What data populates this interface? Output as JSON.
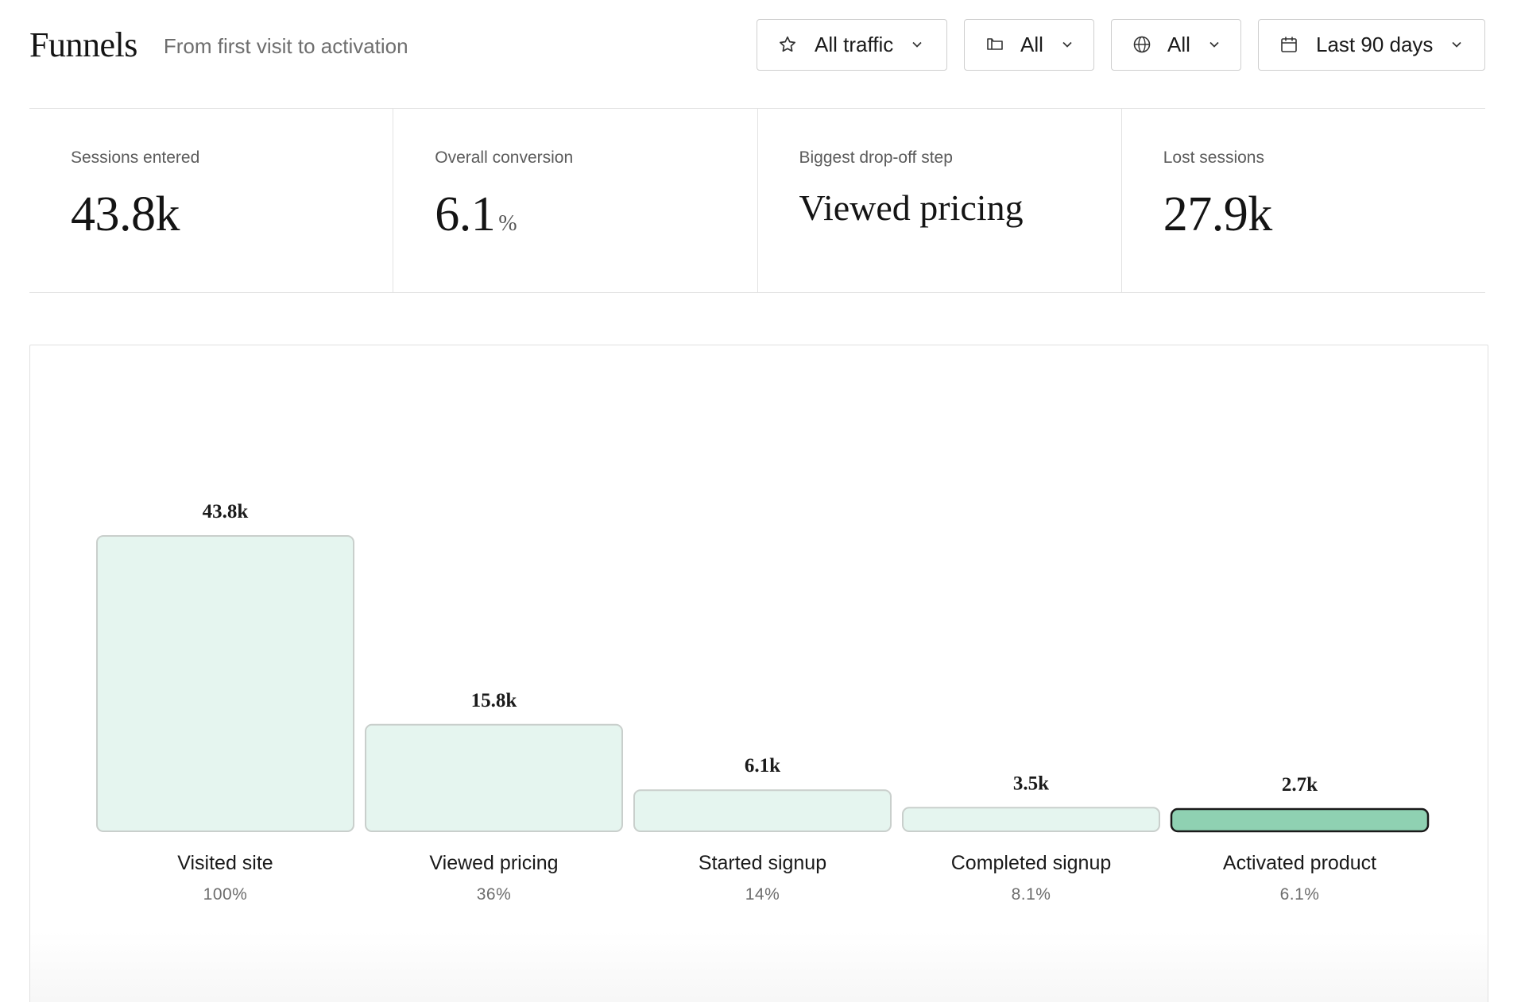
{
  "header": {
    "title": "Funnels",
    "subtitle": "From first visit to activation"
  },
  "filters": {
    "traffic": {
      "label": "All traffic",
      "icon": "star-icon"
    },
    "folder": {
      "label": "All",
      "icon": "folder-icon"
    },
    "region": {
      "label": "All",
      "icon": "globe-icon"
    },
    "date": {
      "label": "Last 90 days",
      "icon": "calendar-icon"
    }
  },
  "stats": [
    {
      "label": "Sessions entered",
      "value": "43.8k",
      "unit": ""
    },
    {
      "label": "Overall conversion",
      "value": "6.1",
      "unit": "%"
    },
    {
      "label": "Biggest drop-off step",
      "value": "Viewed pricing",
      "unit": ""
    },
    {
      "label": "Lost sessions",
      "value": "27.9k",
      "unit": ""
    }
  ],
  "colors": {
    "bar_fill": "#e5f5ef",
    "bar_stroke": "#c9cfcc",
    "highlight_fill": "#8fd1b2",
    "highlight_stroke": "#1a1a1a"
  },
  "chart_data": {
    "type": "bar",
    "categories": [
      "Visited site",
      "Viewed pricing",
      "Started signup",
      "Completed signup",
      "Activated product"
    ],
    "values": [
      43800,
      15800,
      6100,
      3500,
      2700
    ],
    "value_labels": [
      "43.8k",
      "15.8k",
      "6.1k",
      "3.5k",
      "2.7k"
    ],
    "percent_labels": [
      "100%",
      "36%",
      "14%",
      "8.1%",
      "6.1%"
    ],
    "highlight_index": 4,
    "title": "",
    "xlabel": "",
    "ylabel": "",
    "ylim": [
      0,
      43800
    ],
    "grid": false
  }
}
